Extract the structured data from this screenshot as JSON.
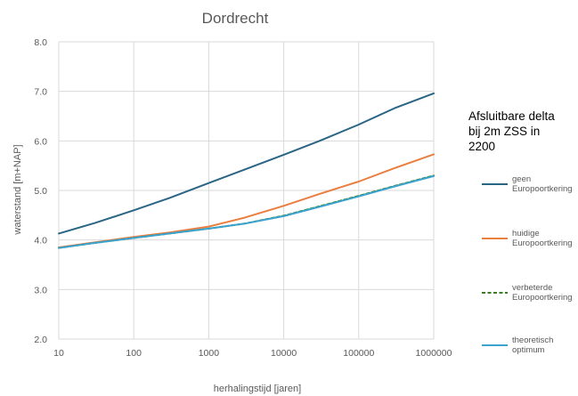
{
  "chart_data": {
    "type": "line",
    "title": "Dordrecht",
    "xlabel": "herhalingstijd [jaren]",
    "ylabel": "waterstand [m+NAP]",
    "x_scale": "log",
    "xlim": [
      10,
      1000000
    ],
    "ylim": [
      2.0,
      8.0
    ],
    "x_ticks": [
      "10",
      "100",
      "1000",
      "10000",
      "100000",
      "1000000"
    ],
    "y_ticks": [
      "2.0",
      "3.0",
      "4.0",
      "5.0",
      "6.0",
      "7.0",
      "8.0"
    ],
    "grid": true,
    "legend_position": "right",
    "legend_title": [
      "Afsluitbare delta",
      "bij 2m ZSS in",
      "2200"
    ],
    "x": [
      10,
      30,
      100,
      300,
      1000,
      3000,
      10000,
      30000,
      100000,
      300000,
      1000000
    ],
    "series": [
      {
        "name": [
          "geen",
          "Europoortkering"
        ],
        "color": "#2a6585",
        "dash": "solid",
        "values": [
          4.13,
          4.34,
          4.6,
          4.85,
          5.15,
          5.42,
          5.72,
          6.0,
          6.33,
          6.66,
          6.96
        ]
      },
      {
        "name": [
          "huidige",
          "Europoortkering"
        ],
        "color": "#ea7e3f",
        "dash": "solid",
        "values": [
          3.85,
          3.95,
          4.06,
          4.15,
          4.27,
          4.45,
          4.69,
          4.93,
          5.18,
          5.45,
          5.73
        ]
      },
      {
        "name": [
          "verbeterde",
          "Europoortkering"
        ],
        "color": "#3b7d23",
        "dash": "dashed",
        "values": [
          3.84,
          3.94,
          4.04,
          4.13,
          4.23,
          4.33,
          4.49,
          4.68,
          4.89,
          5.09,
          5.3
        ]
      },
      {
        "name": [
          "theoretisch",
          "optimum"
        ],
        "color": "#3ba3cf",
        "dash": "solid",
        "values": [
          3.84,
          3.94,
          4.04,
          4.13,
          4.23,
          4.33,
          4.48,
          4.67,
          4.88,
          5.08,
          5.29
        ]
      }
    ]
  }
}
